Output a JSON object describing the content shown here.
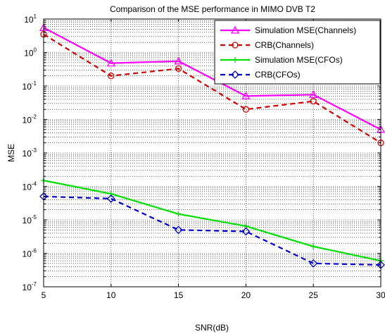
{
  "chart_data": {
    "type": "line",
    "title": "Comparison of the MSE performance in MIMO DVB T2",
    "xlabel": "SNR(dB)",
    "ylabel": "MSE",
    "xlim": [
      5,
      30
    ],
    "ylim": [
      1e-07,
      10
    ],
    "yscale": "log",
    "grid": true,
    "legend_position": "top-right",
    "x": [
      5,
      10,
      15,
      20,
      25,
      30
    ],
    "x_ticks": [
      "5",
      "10",
      "15",
      "20",
      "25",
      "30"
    ],
    "y_tick_exponents": [
      "1",
      "0",
      "-1",
      "-2",
      "-3",
      "-4",
      "-5",
      "-6",
      "-7"
    ],
    "series": [
      {
        "name": "Simulation MSE(Channels)",
        "color": "#ff00ff",
        "line_style": "solid",
        "marker": "triangle",
        "values": [
          5.5,
          0.48,
          0.55,
          0.05,
          0.055,
          0.005
        ]
      },
      {
        "name": "CRB(Channels)",
        "color": "#d40000",
        "line_style": "dashed",
        "marker": "circle",
        "values": [
          3.5,
          0.2,
          0.33,
          0.02,
          0.035,
          0.002
        ]
      },
      {
        "name": "Simulation MSE(CFOs)",
        "color": "#00e000",
        "line_style": "solid",
        "marker": "plus",
        "values": [
          0.00015,
          6e-05,
          1.5e-05,
          6.5e-06,
          1.6e-06,
          6e-07
        ]
      },
      {
        "name": "CRB(CFOs)",
        "color": "#0000c8",
        "line_style": "dashed",
        "marker": "diamond",
        "values": [
          5e-05,
          4.3e-05,
          5e-06,
          4.5e-06,
          5e-07,
          4.5e-07
        ]
      }
    ]
  }
}
